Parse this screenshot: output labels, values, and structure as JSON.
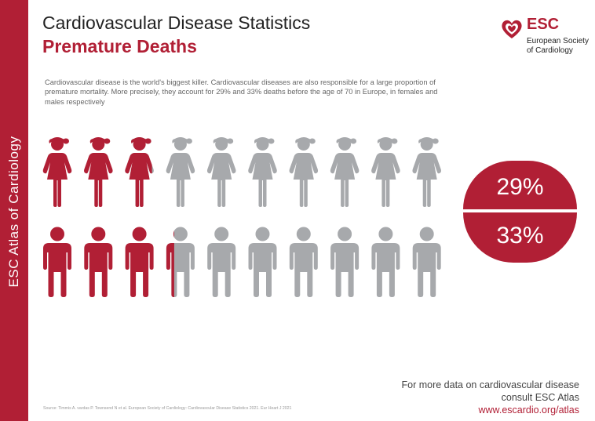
{
  "sidebar": {
    "label": "ESC Atlas of Cardiology"
  },
  "header": {
    "title": "Cardiovascular Disease Statistics",
    "subtitle": "Premature Deaths"
  },
  "intro": "Cardiovascular disease is the world's biggest killer. Cardiovascular diseases are also responsible for a large proportion of premature mortality. More precisely, they account for 29% and 33% deaths before the age of 70 in Europe, in females and males respectively",
  "logo": {
    "abbr": "ESC",
    "name_line1": "European Society",
    "name_line2": "of Cardiology",
    "icon": "heart-icon"
  },
  "pictogram": {
    "total_per_row": 10,
    "females_highlighted": 2.9,
    "males_highlighted": 3.3,
    "highlight_color": "#b11f35",
    "base_color": "#a7a9ac"
  },
  "stats": {
    "female_pct": "29%",
    "male_pct": "33%"
  },
  "footer": {
    "line1": "For more data on cardiovascular disease",
    "line2": "consult ESC Atlas",
    "link": "www.escardio.org/atlas"
  },
  "source": "Source: Timmis A. vardas P. Townsend N et al. European Society of Cardiology: Cardiovascular Disease Statistics 2021. Eur Heart J 2021"
}
